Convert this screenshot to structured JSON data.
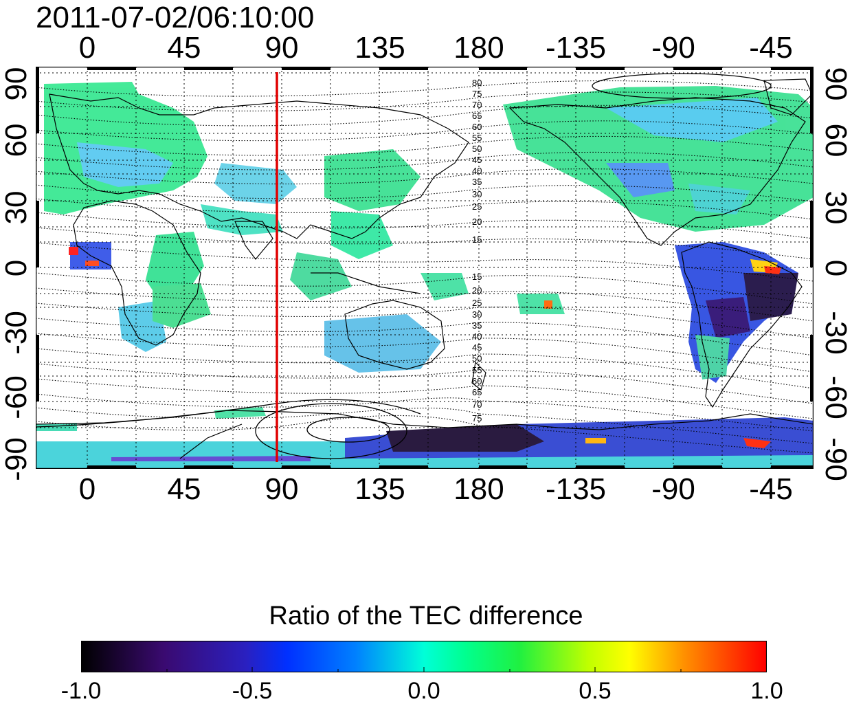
{
  "timestamp": "2011-07-02/06:10:00",
  "map": {
    "x_ticks_top": [
      "0",
      "45",
      "90",
      "135",
      "180",
      "-135",
      "-90",
      "-45"
    ],
    "x_ticks_bottom": [
      "0",
      "45",
      "90",
      "135",
      "180",
      "-135",
      "-90",
      "-45"
    ],
    "y_ticks_left": [
      "90",
      "60",
      "30",
      "0",
      "-30",
      "-60",
      "-90"
    ],
    "y_ticks_right": [
      "90",
      "60",
      "30",
      "0",
      "-30",
      "-60",
      "-90"
    ],
    "marker_longitude": 90,
    "marker_color": "#e00000",
    "contour_labels_north": [
      "80",
      "75",
      "70",
      "65",
      "60",
      "55",
      "50",
      "45",
      "40",
      "35",
      "30",
      "25",
      "20",
      "15"
    ],
    "contour_labels_south": [
      "15",
      "20",
      "25",
      "30",
      "35",
      "40",
      "45",
      "50",
      "55",
      "60",
      "65",
      "70",
      "75"
    ]
  },
  "colorbar": {
    "title": "Ratio of the TEC difference",
    "ticks": [
      "-1.0",
      "-0.5",
      "0.0",
      "0.5",
      "1.0"
    ],
    "min": -1.0,
    "max": 1.0
  },
  "colors": {
    "negative_strong": "#000000",
    "negative_mid": "#0000ff",
    "neutral": "#00ff80",
    "positive_mid": "#ffff00",
    "positive_strong": "#ff0000"
  }
}
